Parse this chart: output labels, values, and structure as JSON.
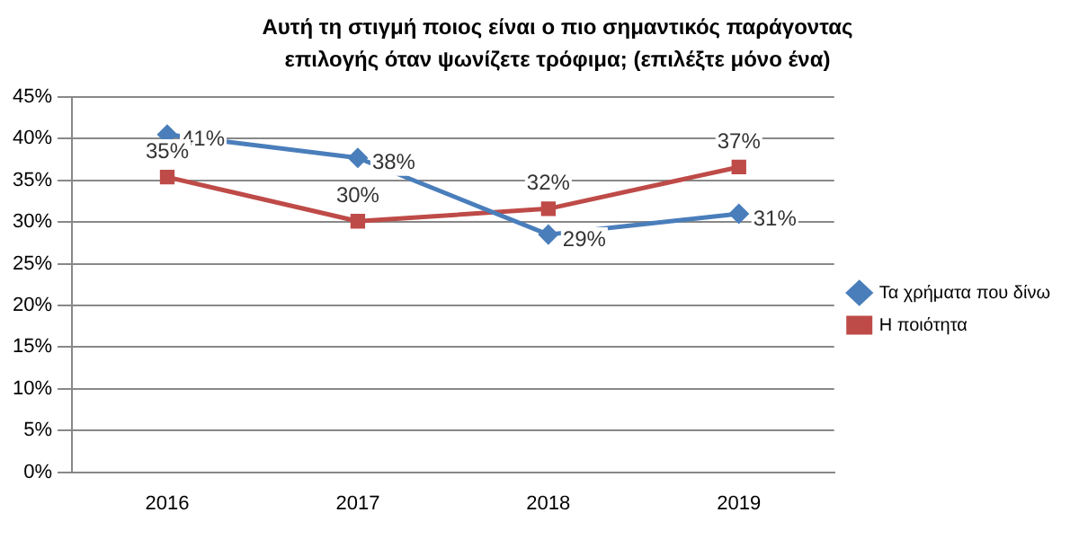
{
  "chart_data": {
    "type": "line",
    "title": "Αυτή τη στιγμή ποιος είναι ο πιο σημαντικός παράγοντας επιλογής όταν ψωνίζετε τρόφιμα; (επιλέξτε μόνο ένα)",
    "categories": [
      "2016",
      "2017",
      "2018",
      "2019"
    ],
    "series": [
      {
        "name": "Τα χρήματα που δίνω",
        "color": "#4a7ebb",
        "marker": "diamond",
        "values": [
          40.5,
          37.7,
          28.5,
          31
        ],
        "value_labels": [
          "41%",
          "38%",
          "29%",
          "31%"
        ]
      },
      {
        "name": "Η ποιότητα",
        "color": "#be4b48",
        "marker": "square",
        "values": [
          35.4,
          30.1,
          31.6,
          36.6
        ],
        "value_labels": [
          "35%",
          "30%",
          "32%",
          "37%"
        ]
      }
    ],
    "ylim": [
      0,
      45
    ],
    "yticks": [
      {
        "value": 0,
        "label": "0%"
      },
      {
        "value": 5,
        "label": "5%"
      },
      {
        "value": 10,
        "label": "10%"
      },
      {
        "value": 15,
        "label": "15%"
      },
      {
        "value": 20,
        "label": "20%"
      },
      {
        "value": 25,
        "label": "25%"
      },
      {
        "value": 30,
        "label": "30%"
      },
      {
        "value": 35,
        "label": "35%"
      },
      {
        "value": 40,
        "label": "40%"
      },
      {
        "value": 45,
        "label": "45%"
      }
    ],
    "grid": "y",
    "legend": "right",
    "line_style": "solid"
  }
}
